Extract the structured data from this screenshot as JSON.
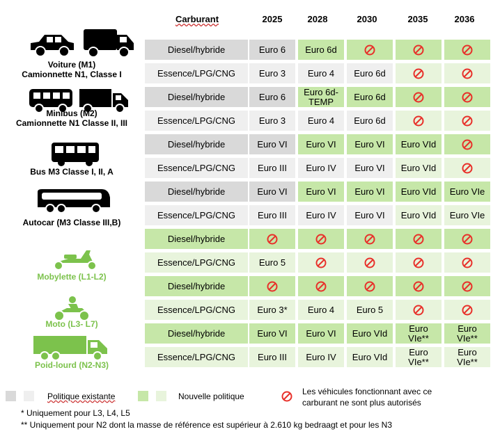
{
  "colors": {
    "existing": "#d9d9d9",
    "existing_light": "#efefef",
    "new": "#c6e7a8",
    "new_light": "#e8f4dc",
    "prohibited": "#e8302a",
    "green_label": "#7cc24c"
  },
  "headers": [
    "Carburant",
    "2025",
    "2028",
    "2030",
    "2035",
    "2036"
  ],
  "vehicles": [
    {
      "label_1": "Voiture (M1)",
      "label_2": "Camionnette N1, Classe I",
      "icons": [
        "car-icon",
        "van-icon"
      ]
    },
    {
      "label_1": "Minibus (M2)",
      "label_2": "Camionnette N1 Classe II, III",
      "icons": [
        "minibus-icon",
        "truck-icon"
      ]
    },
    {
      "label_1": "Bus M3 Classe I, II, A",
      "label_2": "",
      "icons": [
        "bus-icon"
      ]
    },
    {
      "label_1": "Autocar (M3 Classe III,B)",
      "label_2": "",
      "icons": [
        "coach-icon"
      ]
    },
    {
      "label_1": "Mobylette (L1-L2)",
      "label_2": "",
      "icons": [
        "scooter-icon"
      ]
    },
    {
      "label_1": "Moto (L3- L7)",
      "label_2": "",
      "icons": [
        "motorcycle-icon"
      ]
    },
    {
      "label_1": "Poid-lourd (N2-N3)",
      "label_2": "",
      "icons": [
        "heavy-truck-icon"
      ]
    }
  ],
  "rows": [
    {
      "fuel": "Diesel/hybride",
      "cells": [
        "Euro 6",
        "Euro 6d",
        "⊘",
        "⊘",
        "⊘"
      ],
      "fills": [
        "E",
        "N",
        "N",
        "N",
        "N"
      ]
    },
    {
      "fuel": "Essence/LPG/CNG",
      "cells": [
        "Euro 3",
        "Euro 4",
        "Euro 6d",
        "⊘",
        "⊘"
      ],
      "fills": [
        "e",
        "e",
        "e",
        "n",
        "n"
      ]
    },
    {
      "fuel": "Diesel/hybride",
      "cells": [
        "Euro 6",
        "Euro 6d-\nTEMP",
        "Euro 6d",
        "⊘",
        "⊘"
      ],
      "fills": [
        "E",
        "N",
        "N",
        "N",
        "N"
      ]
    },
    {
      "fuel": "Essence/LPG/CNG",
      "cells": [
        "Euro 3",
        "Euro 4",
        "Euro 6d",
        "⊘",
        "⊘"
      ],
      "fills": [
        "e",
        "e",
        "e",
        "n",
        "n"
      ]
    },
    {
      "fuel": "Diesel/hybride",
      "cells": [
        "Euro VI",
        "Euro VI",
        "Euro VI",
        "Euro VId",
        "⊘"
      ],
      "fills": [
        "E",
        "N",
        "N",
        "N",
        "N"
      ]
    },
    {
      "fuel": "Essence/LPG/CNG",
      "cells": [
        "Euro III",
        "Euro IV",
        "Euro VI",
        "Euro VId",
        "⊘"
      ],
      "fills": [
        "e",
        "e",
        "e",
        "n",
        "n"
      ]
    },
    {
      "fuel": "Diesel/hybride",
      "cells": [
        "Euro VI",
        "Euro VI",
        "Euro VI",
        "Euro VId",
        "Euro VIe"
      ],
      "fills": [
        "E",
        "N",
        "N",
        "N",
        "N"
      ]
    },
    {
      "fuel": "Essence/LPG/CNG",
      "cells": [
        "Euro III",
        "Euro IV",
        "Euro VI",
        "Euro VId",
        "Euro VIe"
      ],
      "fills": [
        "e",
        "e",
        "e",
        "n",
        "n"
      ]
    },
    {
      "fuel": "Diesel/hybride",
      "cells": [
        "⊘",
        "⊘",
        "⊘",
        "⊘",
        "⊘"
      ],
      "fills": [
        "N",
        "N",
        "N",
        "N",
        "N"
      ]
    },
    {
      "fuel": "Essence/LPG/CNG",
      "cells": [
        "Euro 5",
        "⊘",
        "⊘",
        "⊘",
        "⊘"
      ],
      "fills": [
        "n",
        "n",
        "n",
        "n",
        "n"
      ]
    },
    {
      "fuel": "Diesel/hybride",
      "cells": [
        "⊘",
        "⊘",
        "⊘",
        "⊘",
        "⊘"
      ],
      "fills": [
        "N",
        "N",
        "N",
        "N",
        "N"
      ]
    },
    {
      "fuel": "Essence/LPG/CNG",
      "cells": [
        "Euro 3*",
        "Euro 4",
        "Euro 5",
        "⊘",
        "⊘"
      ],
      "fills": [
        "n",
        "n",
        "n",
        "n",
        "n"
      ]
    },
    {
      "fuel": "Diesel/hybride",
      "cells": [
        "Euro VI",
        "Euro VI",
        "Euro VId",
        "Euro\nVIe**",
        "Euro\nVIe**"
      ],
      "fills": [
        "N",
        "N",
        "N",
        "N",
        "N"
      ]
    },
    {
      "fuel": "Essence/LPG/CNG",
      "cells": [
        "Euro III",
        "Euro IV",
        "Euro VId",
        "Euro\nVIe**",
        "Euro\nVIe**"
      ],
      "fills": [
        "n",
        "n",
        "n",
        "n",
        "n"
      ]
    }
  ],
  "legend": {
    "existing": "Politique existante",
    "new": "Nouvelle politique",
    "prohibited_1": "Les véhicules fonctionnant avec ce",
    "prohibited_2": "carburant ne sont plus autorisés"
  },
  "footnotes": [
    "* Uniquement pour L3, L4, L5",
    "** Uniquement pour N2 dont la masse de référence est supérieur à 2.610 kg bedraagt et pour les N3"
  ]
}
